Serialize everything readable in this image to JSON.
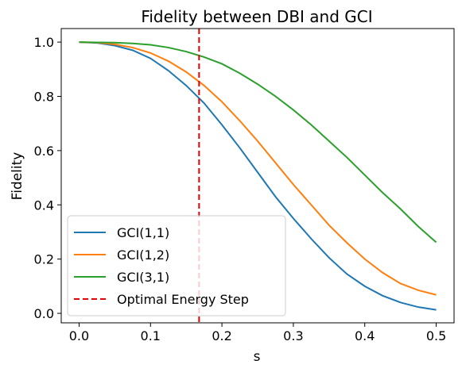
{
  "chart_data": {
    "type": "line",
    "title": "Fidelity between DBI and GCI",
    "xlabel": "s",
    "ylabel": "Fidelity",
    "xlim": [
      -0.025,
      0.525
    ],
    "ylim": [
      -0.035,
      1.05
    ],
    "xticks": [
      0.0,
      0.1,
      0.2,
      0.3,
      0.4,
      0.5
    ],
    "xtick_labels": [
      "0.0",
      "0.1",
      "0.2",
      "0.3",
      "0.4",
      "0.5"
    ],
    "yticks": [
      0.0,
      0.2,
      0.4,
      0.6,
      0.8,
      1.0
    ],
    "ytick_labels": [
      "0.0",
      "0.2",
      "0.4",
      "0.6",
      "0.8",
      "1.0"
    ],
    "grid": false,
    "legend_position": "lower-left",
    "x": [
      0.0,
      0.025,
      0.05,
      0.075,
      0.1,
      0.125,
      0.15,
      0.175,
      0.2,
      0.225,
      0.25,
      0.275,
      0.3,
      0.325,
      0.35,
      0.375,
      0.4,
      0.425,
      0.45,
      0.475,
      0.5
    ],
    "series": [
      {
        "name": "GCI(1,1)",
        "color": "#1f77b4",
        "values": [
          1.0,
          0.997,
          0.987,
          0.97,
          0.94,
          0.895,
          0.84,
          0.775,
          0.695,
          0.61,
          0.52,
          0.43,
          0.35,
          0.275,
          0.205,
          0.145,
          0.1,
          0.065,
          0.04,
          0.023,
          0.013
        ]
      },
      {
        "name": "GCI(1,2)",
        "color": "#ff7f0e",
        "values": [
          1.0,
          0.998,
          0.992,
          0.98,
          0.96,
          0.93,
          0.89,
          0.84,
          0.78,
          0.71,
          0.635,
          0.555,
          0.475,
          0.4,
          0.325,
          0.26,
          0.2,
          0.15,
          0.11,
          0.085,
          0.068
        ]
      },
      {
        "name": "GCI(3,1)",
        "color": "#2ca02c",
        "values": [
          1.0,
          0.999,
          0.998,
          0.995,
          0.99,
          0.98,
          0.965,
          0.945,
          0.92,
          0.885,
          0.845,
          0.8,
          0.75,
          0.695,
          0.635,
          0.575,
          0.51,
          0.445,
          0.385,
          0.32,
          0.262
        ]
      }
    ],
    "reference_line": {
      "name": "Optimal Energy Step",
      "x": 0.168,
      "color": "#e60000",
      "style": "dashed"
    }
  }
}
